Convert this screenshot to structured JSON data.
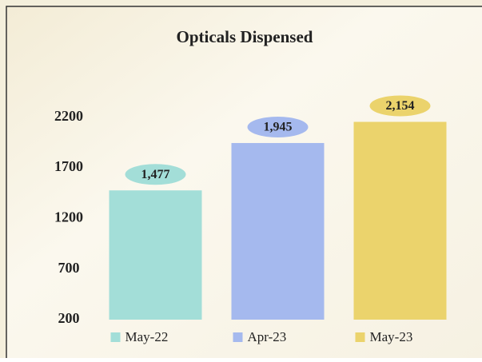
{
  "chart_data": {
    "type": "bar",
    "title": "Opticals Dispensed",
    "categories": [
      "May-22",
      "Apr-23",
      "May-23"
    ],
    "values": [
      1477,
      1945,
      2154
    ],
    "value_labels": [
      "1,477",
      "1,945",
      "2,154"
    ],
    "colors": [
      "#a3ded8",
      "#a5b9ee",
      "#ebd36c"
    ],
    "ylim": [
      200,
      2300
    ],
    "yticks": [
      200,
      700,
      1200,
      1700,
      2200
    ],
    "grid": false
  }
}
